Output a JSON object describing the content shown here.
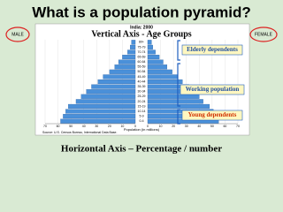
{
  "slide": {
    "title": "What is a population pyramid?",
    "left_label": "MALE",
    "right_label": "FEMALE",
    "footer": "Horizontal Axis – Percentage / number"
  },
  "chart_data": {
    "type": "pyramid",
    "title": "India: 2000",
    "subtitle": "Vertical Axis - Age Groups",
    "categories": [
      "0-4",
      "5-9",
      "10-14",
      "15-19",
      "20-24",
      "25-29",
      "30-34",
      "35-39",
      "40-44",
      "45-49",
      "50-54",
      "55-59",
      "60-64",
      "65-69",
      "70-74",
      "75-79",
      "80+"
    ],
    "series": [
      {
        "name": "Male",
        "color": "#4a90d9",
        "values": [
          58,
          56,
          54,
          52,
          46,
          42,
          38,
          34,
          29,
          25,
          20,
          16,
          13,
          10,
          6,
          4,
          3
        ]
      },
      {
        "name": "Female",
        "color": "#4a90d9",
        "values": [
          55,
          53,
          51,
          48,
          43,
          40,
          36,
          32,
          27,
          23,
          19,
          15,
          12,
          9,
          6,
          4,
          3
        ]
      }
    ],
    "xlim": [
      0,
      70
    ],
    "xticks": [
      0,
      10,
      20,
      30,
      40,
      50,
      60,
      70
    ],
    "grid": true,
    "xlabel": "Population (in millions)",
    "source": "Source: U.S. Census Bureau, International Data Base.",
    "annotations": [
      "Elderly dependents",
      "Working population",
      "Young dependents"
    ]
  }
}
